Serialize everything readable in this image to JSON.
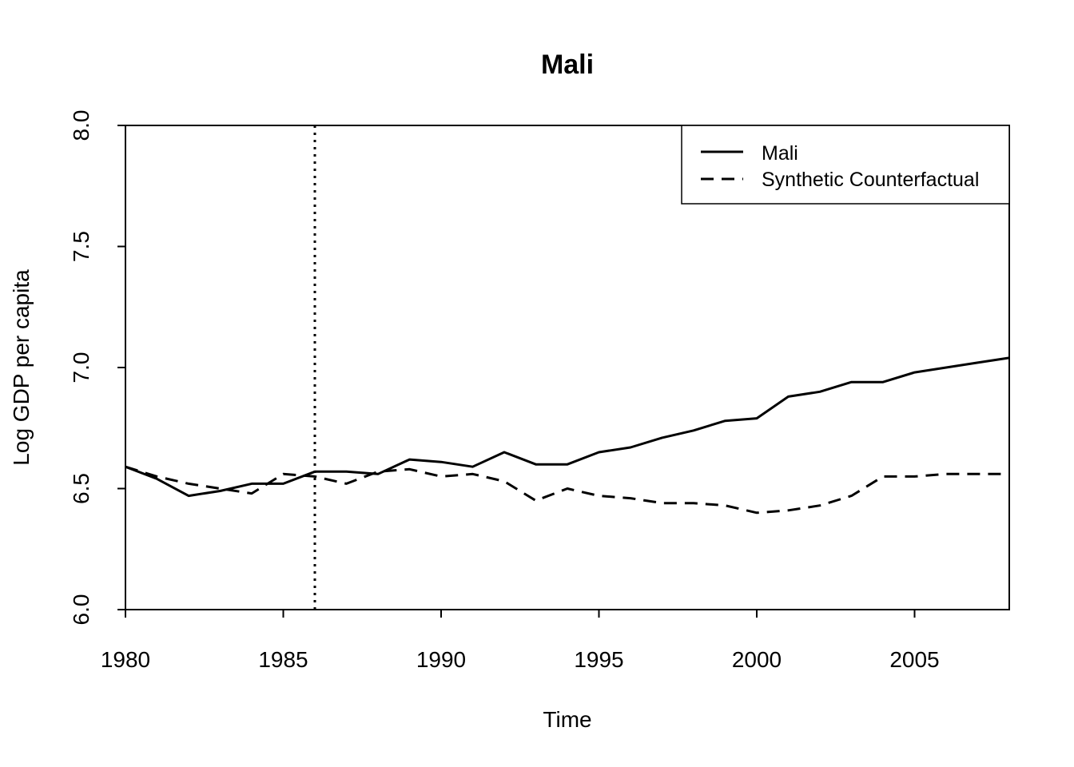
{
  "chart_data": {
    "type": "line",
    "title": "Mali",
    "xlabel": "Time",
    "ylabel": "Log GDP per capita",
    "xlim": [
      1980,
      2008
    ],
    "ylim": [
      6.0,
      8.0
    ],
    "x_ticks": [
      1980,
      1985,
      1990,
      1995,
      2000,
      2005
    ],
    "y_ticks": [
      6.0,
      6.5,
      7.0,
      7.5,
      8.0
    ],
    "x_tick_labels": [
      "1980",
      "1985",
      "1990",
      "1995",
      "2000",
      "2005"
    ],
    "y_tick_labels": [
      "6.0",
      "6.5",
      "7.0",
      "7.5",
      "8.0"
    ],
    "grid": false,
    "legend_position": "top-right",
    "vline": 1986,
    "x": [
      1980,
      1981,
      1982,
      1983,
      1984,
      1985,
      1986,
      1987,
      1988,
      1989,
      1990,
      1991,
      1992,
      1993,
      1994,
      1995,
      1996,
      1997,
      1998,
      1999,
      2000,
      2001,
      2002,
      2003,
      2004,
      2005,
      2006,
      2007,
      2008
    ],
    "series": [
      {
        "name": "Mali",
        "style": "solid",
        "color": "#000000",
        "values": [
          6.59,
          6.54,
          6.47,
          6.49,
          6.52,
          6.52,
          6.57,
          6.57,
          6.56,
          6.62,
          6.61,
          6.59,
          6.65,
          6.6,
          6.6,
          6.65,
          6.67,
          6.71,
          6.74,
          6.78,
          6.79,
          6.88,
          6.9,
          6.94,
          6.94,
          6.98,
          7.0,
          7.02,
          7.04
        ]
      },
      {
        "name": "Synthetic Counterfactual",
        "style": "dashed",
        "color": "#000000",
        "values": [
          6.59,
          6.55,
          6.52,
          6.5,
          6.48,
          6.56,
          6.55,
          6.52,
          6.57,
          6.58,
          6.55,
          6.56,
          6.53,
          6.45,
          6.5,
          6.47,
          6.46,
          6.44,
          6.44,
          6.43,
          6.4,
          6.41,
          6.43,
          6.47,
          6.55,
          6.55,
          6.56,
          6.56,
          6.56
        ]
      }
    ]
  }
}
